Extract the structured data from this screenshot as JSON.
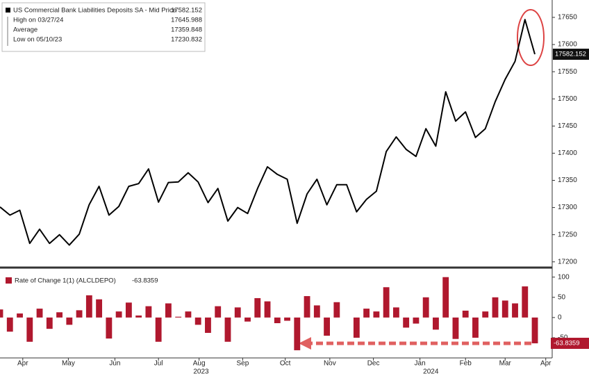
{
  "chart_data": [
    {
      "type": "line",
      "series": [
        {
          "name": "US Commercial Bank Liabilities Deposits SA - Mid Price",
          "color": "#000000",
          "last_value": 17582.152,
          "values": [
            17301,
            17286,
            17295,
            17234,
            17260,
            17234,
            17250,
            17230.832,
            17251,
            17305,
            17339,
            17286,
            17302,
            17339,
            17344,
            17371,
            17310,
            17346,
            17347,
            17364,
            17347,
            17309,
            17335,
            17275,
            17300,
            17289,
            17335,
            17375,
            17361,
            17352,
            17271,
            17325,
            17352,
            17305,
            17342,
            17342,
            17292,
            17315,
            17330,
            17403,
            17430,
            17407,
            17394,
            17445,
            17413,
            17513,
            17459,
            17476,
            17429,
            17445,
            17495,
            17536,
            17569,
            17645.988,
            17582.152
          ]
        }
      ],
      "stats": [
        {
          "label": "High on 03/27/24",
          "value": 17645.988
        },
        {
          "label": "Average",
          "value": 17359.848
        },
        {
          "label": "Low on 05/10/23",
          "value": 17230.832
        }
      ],
      "xlim": [
        0,
        55.4
      ],
      "ylim": [
        17192,
        17682
      ],
      "yticks": [
        17200,
        17250,
        17300,
        17350,
        17400,
        17450,
        17500,
        17550,
        17600,
        17650
      ]
    },
    {
      "type": "bar",
      "series": [
        {
          "name": "Rate of Change 1(1) (ALCLDEPO)",
          "color": "#b0182e",
          "last_value": -63.8359,
          "values": [
            20,
            -35,
            10,
            -60,
            22,
            -28,
            13,
            -18,
            18,
            55,
            45,
            -52,
            15,
            37,
            5,
            28,
            -60,
            35,
            2,
            15,
            -18,
            -38,
            28,
            -60,
            25,
            -10,
            48,
            40,
            -14,
            -8,
            -81,
            53,
            30,
            -45,
            38,
            0,
            -50,
            22,
            15,
            75,
            25,
            -25,
            -15,
            50,
            -30,
            100,
            -53,
            17,
            -50,
            15,
            50,
            42,
            35,
            77,
            -63.8359
          ]
        }
      ],
      "xlim": [
        0,
        55.4
      ],
      "ylim": [
        -100,
        115
      ],
      "yticks": [
        100,
        50,
        0,
        -50
      ],
      "xticks": [
        {
          "value": 2.3,
          "label": "Apr"
        },
        {
          "value": 6.9,
          "label": "May"
        },
        {
          "value": 11.6,
          "label": "Jun"
        },
        {
          "value": 16,
          "label": "Jul"
        },
        {
          "value": 20.1,
          "label": "Aug"
        },
        {
          "value": 24.5,
          "label": "Sep"
        },
        {
          "value": 28.8,
          "label": "Oct"
        },
        {
          "value": 33.3,
          "label": "Nov"
        },
        {
          "value": 37.7,
          "label": "Dec"
        },
        {
          "value": 42.4,
          "label": "Jan"
        },
        {
          "value": 47,
          "label": "Feb"
        },
        {
          "value": 51,
          "label": "Mar"
        },
        {
          "value": 55.1,
          "label": "Apr"
        }
      ],
      "year_labels": [
        {
          "value": 20.3,
          "label": "2023"
        },
        {
          "value": 43.5,
          "label": "2024"
        }
      ]
    }
  ]
}
